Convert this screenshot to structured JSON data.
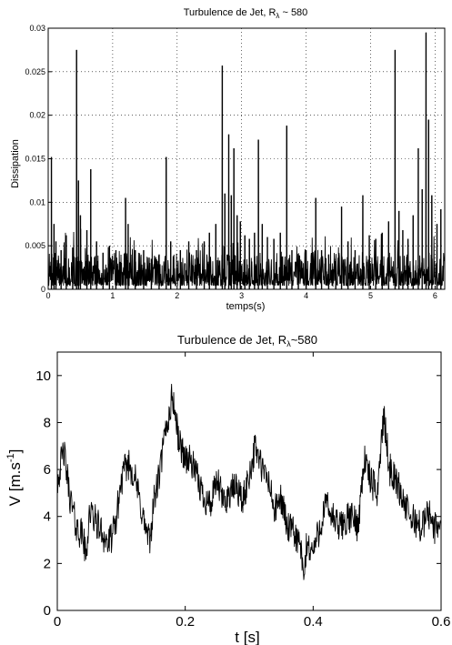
{
  "chart_data": [
    {
      "type": "line",
      "title": "Turbulence de Jet, R",
      "title_subscript": "λ",
      "title_suffix": " ~ 580",
      "xlabel": "temps(s)",
      "ylabel": "Dissipation",
      "xlim": [
        0,
        6.15
      ],
      "ylim": [
        0,
        0.03
      ],
      "xticks": [
        0,
        1,
        2,
        3,
        4,
        5,
        6
      ],
      "xtick_labels": [
        "0",
        "1",
        "2",
        "3",
        "4",
        "5",
        "6"
      ],
      "yticks": [
        0,
        0.005,
        0.01,
        0.015,
        0.02,
        0.025,
        0.03
      ],
      "ytick_labels": [
        "0",
        "0.005",
        "0.01",
        "0.015",
        "0.02",
        "0.025",
        "0.03"
      ],
      "grid": true,
      "series_color": "#000000",
      "spikes": [
        {
          "x": 0.05,
          "y": 0.0152
        },
        {
          "x": 0.09,
          "y": 0.0075
        },
        {
          "x": 0.12,
          "y": 0.0055
        },
        {
          "x": 0.2,
          "y": 0.0045
        },
        {
          "x": 0.28,
          "y": 0.0062
        },
        {
          "x": 0.38,
          "y": 0.0048
        },
        {
          "x": 0.44,
          "y": 0.0275
        },
        {
          "x": 0.47,
          "y": 0.0125
        },
        {
          "x": 0.5,
          "y": 0.0085
        },
        {
          "x": 0.6,
          "y": 0.0068
        },
        {
          "x": 0.66,
          "y": 0.0138
        },
        {
          "x": 0.75,
          "y": 0.0055
        },
        {
          "x": 0.85,
          "y": 0.0042
        },
        {
          "x": 0.95,
          "y": 0.005
        },
        {
          "x": 1.05,
          "y": 0.0045
        },
        {
          "x": 1.2,
          "y": 0.0105
        },
        {
          "x": 1.24,
          "y": 0.0075
        },
        {
          "x": 1.35,
          "y": 0.0045
        },
        {
          "x": 1.48,
          "y": 0.0045
        },
        {
          "x": 1.6,
          "y": 0.0035
        },
        {
          "x": 1.72,
          "y": 0.004
        },
        {
          "x": 1.83,
          "y": 0.0152
        },
        {
          "x": 1.9,
          "y": 0.0055
        },
        {
          "x": 2.05,
          "y": 0.0045
        },
        {
          "x": 2.18,
          "y": 0.0055
        },
        {
          "x": 2.3,
          "y": 0.0045
        },
        {
          "x": 2.42,
          "y": 0.0055
        },
        {
          "x": 2.5,
          "y": 0.0065
        },
        {
          "x": 2.6,
          "y": 0.0075
        },
        {
          "x": 2.7,
          "y": 0.0257
        },
        {
          "x": 2.74,
          "y": 0.011
        },
        {
          "x": 2.8,
          "y": 0.0178
        },
        {
          "x": 2.84,
          "y": 0.0108
        },
        {
          "x": 2.88,
          "y": 0.0162
        },
        {
          "x": 2.93,
          "y": 0.0085
        },
        {
          "x": 2.98,
          "y": 0.0078
        },
        {
          "x": 3.05,
          "y": 0.0062
        },
        {
          "x": 3.12,
          "y": 0.0058
        },
        {
          "x": 3.2,
          "y": 0.0065
        },
        {
          "x": 3.26,
          "y": 0.0172
        },
        {
          "x": 3.32,
          "y": 0.0075
        },
        {
          "x": 3.4,
          "y": 0.006
        },
        {
          "x": 3.5,
          "y": 0.0058
        },
        {
          "x": 3.6,
          "y": 0.0065
        },
        {
          "x": 3.7,
          "y": 0.0188
        },
        {
          "x": 3.78,
          "y": 0.0045
        },
        {
          "x": 3.88,
          "y": 0.0035
        },
        {
          "x": 4.0,
          "y": 0.0045
        },
        {
          "x": 4.15,
          "y": 0.0105
        },
        {
          "x": 4.24,
          "y": 0.0045
        },
        {
          "x": 4.35,
          "y": 0.004
        },
        {
          "x": 4.46,
          "y": 0.0035
        },
        {
          "x": 4.55,
          "y": 0.0095
        },
        {
          "x": 4.65,
          "y": 0.0055
        },
        {
          "x": 4.76,
          "y": 0.0045
        },
        {
          "x": 4.88,
          "y": 0.0108
        },
        {
          "x": 4.98,
          "y": 0.0062
        },
        {
          "x": 5.08,
          "y": 0.0058
        },
        {
          "x": 5.18,
          "y": 0.0065
        },
        {
          "x": 5.28,
          "y": 0.0078
        },
        {
          "x": 5.38,
          "y": 0.0275
        },
        {
          "x": 5.44,
          "y": 0.009
        },
        {
          "x": 5.5,
          "y": 0.0068
        },
        {
          "x": 5.58,
          "y": 0.0058
        },
        {
          "x": 5.66,
          "y": 0.0085
        },
        {
          "x": 5.74,
          "y": 0.0162
        },
        {
          "x": 5.8,
          "y": 0.0115
        },
        {
          "x": 5.86,
          "y": 0.0295
        },
        {
          "x": 5.9,
          "y": 0.0195
        },
        {
          "x": 5.95,
          "y": 0.0108
        },
        {
          "x": 6.03,
          "y": 0.0075
        },
        {
          "x": 6.09,
          "y": 0.0092
        }
      ]
    },
    {
      "type": "line",
      "title": "Turbulence de Jet, R",
      "title_subscript": "λ",
      "title_suffix": "~580",
      "xlabel": "t [s]",
      "ylabel": "V [m.s",
      "ylabel_superscript": "-1",
      "ylabel_suffix": "]",
      "xlim": [
        0,
        0.6
      ],
      "ylim": [
        0,
        11
      ],
      "xticks": [
        0,
        0.2,
        0.4,
        0.6
      ],
      "xtick_labels": [
        "0",
        "0.2",
        "0.4",
        "0.6"
      ],
      "yticks": [
        0,
        2,
        4,
        6,
        8,
        10
      ],
      "ytick_labels": [
        "0",
        "2",
        "4",
        "6",
        "8",
        "10"
      ],
      "grid": false,
      "series_color": "#000000",
      "x": [
        0,
        0.01,
        0.02,
        0.03,
        0.04,
        0.045,
        0.05,
        0.06,
        0.07,
        0.08,
        0.09,
        0.1,
        0.11,
        0.12,
        0.13,
        0.14,
        0.145,
        0.15,
        0.16,
        0.17,
        0.175,
        0.18,
        0.19,
        0.2,
        0.21,
        0.22,
        0.23,
        0.24,
        0.25,
        0.26,
        0.27,
        0.28,
        0.29,
        0.3,
        0.31,
        0.32,
        0.33,
        0.34,
        0.35,
        0.36,
        0.37,
        0.38,
        0.385,
        0.39,
        0.4,
        0.41,
        0.42,
        0.43,
        0.44,
        0.45,
        0.46,
        0.47,
        0.48,
        0.49,
        0.5,
        0.51,
        0.52,
        0.53,
        0.54,
        0.55,
        0.56,
        0.57,
        0.58,
        0.59,
        0.6
      ],
      "values": [
        5.5,
        6.8,
        4.8,
        3.5,
        3.2,
        2.2,
        4.2,
        3.8,
        3.3,
        2.8,
        3.5,
        5.5,
        6.3,
        5.8,
        4.5,
        3.2,
        2.9,
        4.5,
        5.8,
        7.8,
        8.3,
        9.2,
        7.2,
        6.5,
        6.3,
        5.5,
        4.8,
        4.5,
        5.5,
        4.6,
        5.0,
        5.3,
        4.6,
        5.8,
        7.0,
        6.0,
        5.5,
        4.2,
        4.8,
        3.5,
        3.3,
        2.8,
        1.2,
        2.8,
        2.5,
        3.5,
        4.5,
        4.0,
        3.5,
        3.8,
        4.0,
        3.6,
        6.5,
        5.5,
        5.0,
        8.3,
        6.0,
        5.5,
        4.8,
        4.0,
        3.8,
        3.5,
        4.2,
        3.5,
        3.8
      ]
    }
  ]
}
